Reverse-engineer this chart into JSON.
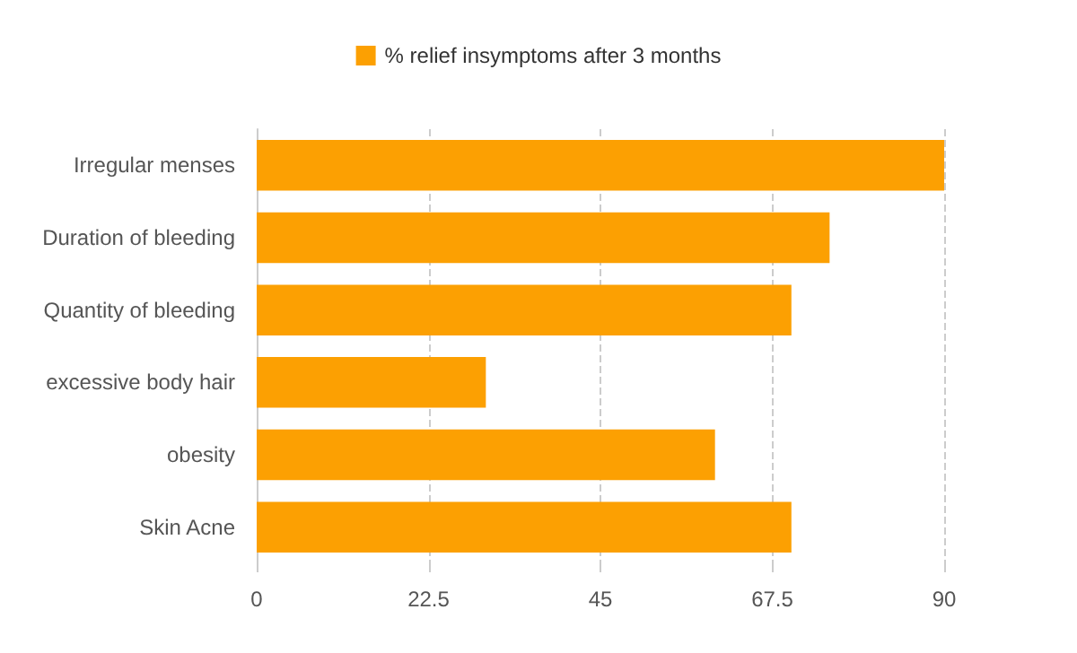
{
  "chart_data": {
    "type": "bar",
    "orientation": "horizontal",
    "categories": [
      "Irregular menses",
      "Duration of bleeding",
      "Quantity of bleeding",
      "excessive body hair",
      "obesity",
      "Skin Acne"
    ],
    "series": [
      {
        "name": "% relief insymptoms after 3 months",
        "color": "#fca002",
        "values": [
          90,
          75,
          70,
          30,
          60,
          70
        ]
      }
    ],
    "xlim": [
      0,
      90
    ],
    "xticks": [
      0,
      22.5,
      45,
      67.5,
      90
    ],
    "grid": "x",
    "legend": "top"
  }
}
